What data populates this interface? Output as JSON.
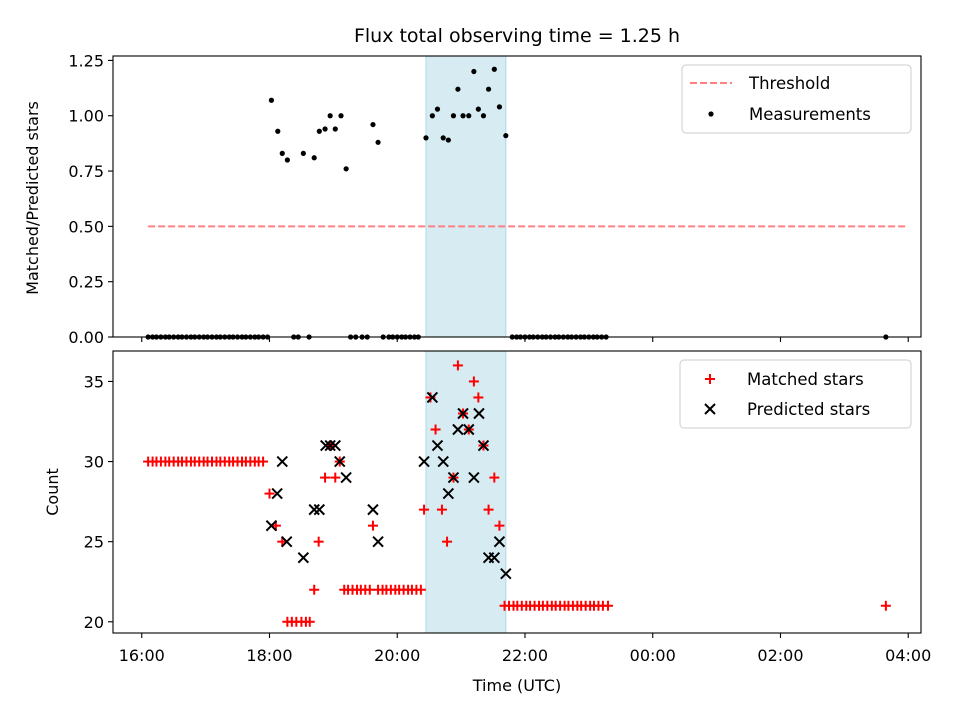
{
  "chart_data": {
    "type": "scatter",
    "title": "Flux total observing time = 1.25 h",
    "xlabel": "Time (UTC)",
    "x_tick_labels": [
      "16:00",
      "18:00",
      "20:00",
      "22:00",
      "00:00",
      "02:00",
      "04:00"
    ],
    "x_tick_hours": [
      16,
      18,
      20,
      22,
      24,
      26,
      28
    ],
    "xlim_hours": [
      15.55,
      28.2
    ],
    "observing_window_hours": [
      20.45,
      21.7
    ],
    "colors": {
      "threshold": "#ff8080",
      "measurement": "#000000",
      "matched": "#ff0000",
      "predicted": "#000000",
      "window_fill": "#add8e6"
    },
    "panels": [
      {
        "id": "ratio",
        "ylabel": "Matched/Predicted stars",
        "ylim": [
          0,
          1.27
        ],
        "y_ticks": [
          0,
          0.25,
          0.5,
          0.75,
          1.0,
          1.25
        ],
        "y_tick_labels": [
          "0.00",
          "0.25",
          "0.50",
          "0.75",
          "1.00",
          "1.25"
        ],
        "legend": {
          "position": "upper right",
          "entries": [
            "Threshold",
            "Measurements"
          ]
        },
        "threshold": {
          "name": "Threshold",
          "y": 0.5,
          "x": [
            16.1,
            28.0
          ]
        },
        "measurements": {
          "name": "Measurements",
          "points": [
            [
              16.1,
              0
            ],
            [
              16.17,
              0
            ],
            [
              16.23,
              0
            ],
            [
              16.3,
              0
            ],
            [
              16.37,
              0
            ],
            [
              16.43,
              0
            ],
            [
              16.5,
              0
            ],
            [
              16.57,
              0
            ],
            [
              16.63,
              0
            ],
            [
              16.7,
              0
            ],
            [
              16.77,
              0
            ],
            [
              16.83,
              0
            ],
            [
              16.9,
              0
            ],
            [
              16.97,
              0
            ],
            [
              17.03,
              0
            ],
            [
              17.1,
              0
            ],
            [
              17.17,
              0
            ],
            [
              17.23,
              0
            ],
            [
              17.3,
              0
            ],
            [
              17.37,
              0
            ],
            [
              17.43,
              0
            ],
            [
              17.5,
              0
            ],
            [
              17.57,
              0
            ],
            [
              17.63,
              0
            ],
            [
              17.7,
              0
            ],
            [
              17.77,
              0
            ],
            [
              17.83,
              0
            ],
            [
              17.9,
              0
            ],
            [
              17.97,
              0
            ],
            [
              18.03,
              1.07
            ],
            [
              18.13,
              0.93
            ],
            [
              18.2,
              0.83
            ],
            [
              18.28,
              0.8
            ],
            [
              18.38,
              0
            ],
            [
              18.45,
              0
            ],
            [
              18.53,
              0.83
            ],
            [
              18.62,
              0
            ],
            [
              18.7,
              0.81
            ],
            [
              18.78,
              0.93
            ],
            [
              18.87,
              0.94
            ],
            [
              18.95,
              1.0
            ],
            [
              19.03,
              0.94
            ],
            [
              19.12,
              1.0
            ],
            [
              19.2,
              0.76
            ],
            [
              19.27,
              0
            ],
            [
              19.35,
              0
            ],
            [
              19.45,
              0
            ],
            [
              19.53,
              0
            ],
            [
              19.62,
              0.96
            ],
            [
              19.7,
              0.88
            ],
            [
              19.78,
              0
            ],
            [
              19.87,
              0
            ],
            [
              19.93,
              0
            ],
            [
              20.0,
              0
            ],
            [
              20.07,
              0
            ],
            [
              20.13,
              0
            ],
            [
              20.2,
              0
            ],
            [
              20.27,
              0
            ],
            [
              20.33,
              0
            ],
            [
              20.45,
              0.9
            ],
            [
              20.55,
              1.0
            ],
            [
              20.63,
              1.03
            ],
            [
              20.72,
              0.9
            ],
            [
              20.8,
              0.89
            ],
            [
              20.88,
              1.0
            ],
            [
              20.95,
              1.12
            ],
            [
              21.03,
              1.0
            ],
            [
              21.12,
              1.0
            ],
            [
              21.2,
              1.2
            ],
            [
              21.27,
              1.03
            ],
            [
              21.35,
              1.0
            ],
            [
              21.43,
              1.12
            ],
            [
              21.52,
              1.21
            ],
            [
              21.6,
              1.04
            ],
            [
              21.7,
              0.91
            ],
            [
              21.8,
              0
            ],
            [
              21.87,
              0
            ],
            [
              21.93,
              0
            ],
            [
              22.0,
              0
            ],
            [
              22.07,
              0
            ],
            [
              22.13,
              0
            ],
            [
              22.2,
              0
            ],
            [
              22.27,
              0
            ],
            [
              22.33,
              0
            ],
            [
              22.4,
              0
            ],
            [
              22.47,
              0
            ],
            [
              22.53,
              0
            ],
            [
              22.6,
              0
            ],
            [
              22.67,
              0
            ],
            [
              22.73,
              0
            ],
            [
              22.8,
              0
            ],
            [
              22.87,
              0
            ],
            [
              22.93,
              0
            ],
            [
              23.0,
              0
            ],
            [
              23.07,
              0
            ],
            [
              23.13,
              0
            ],
            [
              23.2,
              0
            ],
            [
              23.27,
              0
            ],
            [
              27.65,
              0
            ]
          ]
        }
      },
      {
        "id": "count",
        "ylabel": "Count",
        "ylim": [
          19.3,
          36.9
        ],
        "y_ticks": [
          20,
          25,
          30,
          35
        ],
        "y_tick_labels": [
          "20",
          "25",
          "30",
          "35"
        ],
        "legend": {
          "position": "upper right",
          "entries": [
            "Matched stars",
            "Predicted stars"
          ]
        },
        "matched": {
          "name": "Matched stars",
          "points": [
            [
              16.1,
              30
            ],
            [
              16.17,
              30
            ],
            [
              16.23,
              30
            ],
            [
              16.3,
              30
            ],
            [
              16.37,
              30
            ],
            [
              16.43,
              30
            ],
            [
              16.5,
              30
            ],
            [
              16.57,
              30
            ],
            [
              16.63,
              30
            ],
            [
              16.7,
              30
            ],
            [
              16.77,
              30
            ],
            [
              16.83,
              30
            ],
            [
              16.9,
              30
            ],
            [
              16.97,
              30
            ],
            [
              17.03,
              30
            ],
            [
              17.1,
              30
            ],
            [
              17.17,
              30
            ],
            [
              17.23,
              30
            ],
            [
              17.3,
              30
            ],
            [
              17.37,
              30
            ],
            [
              17.43,
              30
            ],
            [
              17.5,
              30
            ],
            [
              17.57,
              30
            ],
            [
              17.63,
              30
            ],
            [
              17.7,
              30
            ],
            [
              17.77,
              30
            ],
            [
              17.83,
              30
            ],
            [
              17.9,
              30
            ],
            [
              18.0,
              28
            ],
            [
              18.1,
              26
            ],
            [
              18.2,
              25
            ],
            [
              18.28,
              20
            ],
            [
              18.35,
              20
            ],
            [
              18.42,
              20
            ],
            [
              18.5,
              20
            ],
            [
              18.57,
              20
            ],
            [
              18.63,
              20
            ],
            [
              18.7,
              22
            ],
            [
              18.77,
              25
            ],
            [
              18.87,
              29
            ],
            [
              18.95,
              31
            ],
            [
              19.03,
              29
            ],
            [
              19.1,
              30
            ],
            [
              19.17,
              22
            ],
            [
              19.23,
              22
            ],
            [
              19.3,
              22
            ],
            [
              19.37,
              22
            ],
            [
              19.43,
              22
            ],
            [
              19.5,
              22
            ],
            [
              19.57,
              22
            ],
            [
              19.62,
              26
            ],
            [
              19.7,
              22
            ],
            [
              19.77,
              22
            ],
            [
              19.83,
              22
            ],
            [
              19.9,
              22
            ],
            [
              19.97,
              22
            ],
            [
              20.03,
              22
            ],
            [
              20.1,
              22
            ],
            [
              20.17,
              22
            ],
            [
              20.23,
              22
            ],
            [
              20.3,
              22
            ],
            [
              20.37,
              22
            ],
            [
              20.42,
              27
            ],
            [
              20.52,
              34
            ],
            [
              20.6,
              32
            ],
            [
              20.7,
              27
            ],
            [
              20.78,
              25
            ],
            [
              20.88,
              29
            ],
            [
              20.95,
              36
            ],
            [
              21.03,
              33
            ],
            [
              21.12,
              32
            ],
            [
              21.2,
              35
            ],
            [
              21.27,
              34
            ],
            [
              21.35,
              31
            ],
            [
              21.43,
              27
            ],
            [
              21.52,
              29
            ],
            [
              21.6,
              26
            ],
            [
              21.68,
              21
            ],
            [
              21.75,
              21
            ],
            [
              21.82,
              21
            ],
            [
              21.88,
              21
            ],
            [
              21.95,
              21
            ],
            [
              22.02,
              21
            ],
            [
              22.08,
              21
            ],
            [
              22.15,
              21
            ],
            [
              22.22,
              21
            ],
            [
              22.28,
              21
            ],
            [
              22.35,
              21
            ],
            [
              22.42,
              21
            ],
            [
              22.48,
              21
            ],
            [
              22.55,
              21
            ],
            [
              22.62,
              21
            ],
            [
              22.68,
              21
            ],
            [
              22.75,
              21
            ],
            [
              22.82,
              21
            ],
            [
              22.88,
              21
            ],
            [
              22.95,
              21
            ],
            [
              23.02,
              21
            ],
            [
              23.08,
              21
            ],
            [
              23.15,
              21
            ],
            [
              23.22,
              21
            ],
            [
              23.3,
              21
            ],
            [
              27.65,
              21
            ]
          ]
        },
        "predicted": {
          "name": "Predicted stars",
          "points": [
            [
              18.03,
              26
            ],
            [
              18.12,
              28
            ],
            [
              18.2,
              30
            ],
            [
              18.27,
              25
            ],
            [
              18.53,
              24
            ],
            [
              18.7,
              27
            ],
            [
              18.78,
              27
            ],
            [
              18.88,
              31
            ],
            [
              18.95,
              31
            ],
            [
              19.03,
              31
            ],
            [
              19.1,
              30
            ],
            [
              19.2,
              29
            ],
            [
              19.62,
              27
            ],
            [
              19.7,
              25
            ],
            [
              20.42,
              30
            ],
            [
              20.55,
              34
            ],
            [
              20.63,
              31
            ],
            [
              20.72,
              30
            ],
            [
              20.8,
              28
            ],
            [
              20.88,
              29
            ],
            [
              20.95,
              32
            ],
            [
              21.03,
              33
            ],
            [
              21.12,
              32
            ],
            [
              21.2,
              29
            ],
            [
              21.28,
              33
            ],
            [
              21.35,
              31
            ],
            [
              21.43,
              24
            ],
            [
              21.52,
              24
            ],
            [
              21.6,
              25
            ],
            [
              21.7,
              23
            ]
          ]
        }
      }
    ]
  }
}
